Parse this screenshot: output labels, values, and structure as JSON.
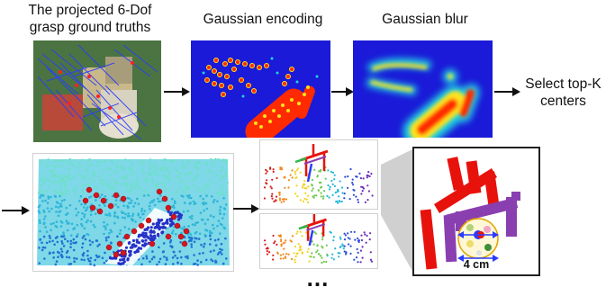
{
  "labels": {
    "ground_truth_line1": "The projected 6-Dof",
    "ground_truth_line2": "grasp ground truths",
    "gaussian_encoding": "Gaussian encoding",
    "gaussian_blur": "Gaussian blur",
    "select_line1": "Select top-K",
    "select_line2": "centers",
    "scale": "4 cm",
    "ellipsis": "..."
  },
  "colors": {
    "heatmap_bg": "#1a1ad8",
    "heat_hot": "#ff2a00",
    "heat_warm": "#ffe21a",
    "heat_cool": "#22d4e0",
    "grasp_red": "#e8120c",
    "grasp_purple": "#8a3fb0",
    "arrow": "#111111"
  },
  "icons": [
    "right-arrow-icon"
  ]
}
